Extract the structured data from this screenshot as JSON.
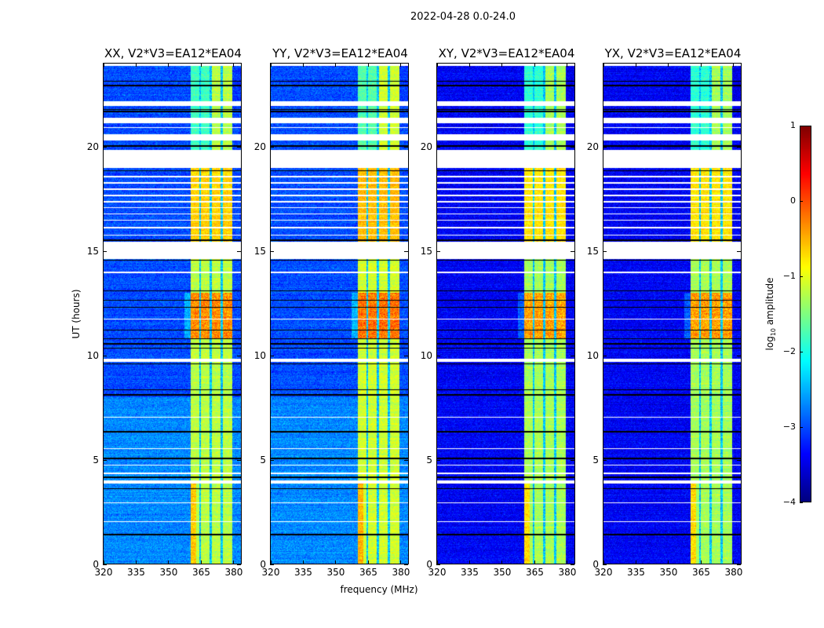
{
  "chart_data": {
    "type": "heatmap",
    "title": "2022-04-28 0.0-24.0",
    "xlabel": "frequency (MHz)",
    "ylabel": "UT (hours)",
    "xlim": [
      320,
      384
    ],
    "ylim": [
      0,
      24
    ],
    "xticks": [
      320,
      335,
      350,
      365,
      380
    ],
    "yticks": [
      0,
      5,
      10,
      15,
      20
    ],
    "panels": [
      {
        "title": "XX, V2*V3=EA12*EA04",
        "background_level": -3.0,
        "early_background_level": -2.7,
        "band_level": -1.2,
        "peak_level": 0.0
      },
      {
        "title": "YY, V2*V3=EA12*EA04",
        "background_level": -3.0,
        "early_background_level": -2.7,
        "band_level": -1.1,
        "peak_level": 0.1
      },
      {
        "title": "XY, V2*V3=EA12*EA04",
        "background_level": -3.4,
        "early_background_level": -3.4,
        "band_level": -1.3,
        "peak_level": -0.1
      },
      {
        "title": "YX, V2*V3=EA12*EA04",
        "background_level": -3.4,
        "early_background_level": -3.4,
        "band_level": -1.3,
        "peak_level": -0.1
      }
    ],
    "bright_band_mhz": [
      360.5,
      380
    ],
    "band_gap_channels_mhz": [
      365,
      370,
      375
    ],
    "peak_ut_range": [
      10.8,
      13.0
    ],
    "flagged_ut_ranges": [
      [
        23.9,
        24
      ],
      [
        21.95,
        22.2
      ],
      [
        21.15,
        21.4
      ],
      [
        20.3,
        20.6
      ],
      [
        19.0,
        19.85
      ],
      [
        14.6,
        15.45
      ],
      [
        9.7,
        9.85
      ],
      [
        3.85,
        4.0
      ],
      [
        4.3,
        4.36
      ],
      [
        2.0,
        2.05
      ],
      [
        2.9,
        2.95
      ],
      [
        15.75,
        15.8
      ],
      [
        16.1,
        16.15
      ],
      [
        16.45,
        16.5
      ],
      [
        16.75,
        16.8
      ],
      [
        17.05,
        17.1
      ],
      [
        17.35,
        17.4
      ],
      [
        17.65,
        17.7
      ],
      [
        17.95,
        18.0
      ],
      [
        18.25,
        18.3
      ],
      [
        18.55,
        18.6
      ],
      [
        20.9,
        20.95
      ],
      [
        13.95,
        14.0
      ],
      [
        11.7,
        11.75
      ],
      [
        7.0,
        7.05
      ],
      [
        5.5,
        5.55
      ],
      [
        4.7,
        4.75
      ]
    ],
    "zero_ut_rows": [
      23.15,
      22.95,
      21.8,
      21.7,
      20.05,
      18.85,
      15.52,
      14.55,
      13.1,
      12.65,
      12.3,
      11.2,
      10.8,
      10.55,
      10.35,
      9.6,
      8.35,
      8.1,
      6.35,
      6.3,
      5.05,
      4.15,
      3.6,
      1.4
    ],
    "colorbar": {
      "label": "log10 amplitude",
      "ticks": [
        1,
        0,
        -1,
        -2,
        -3,
        -4
      ],
      "vmin": -4,
      "vmax": 1,
      "colormap": "jet"
    }
  }
}
